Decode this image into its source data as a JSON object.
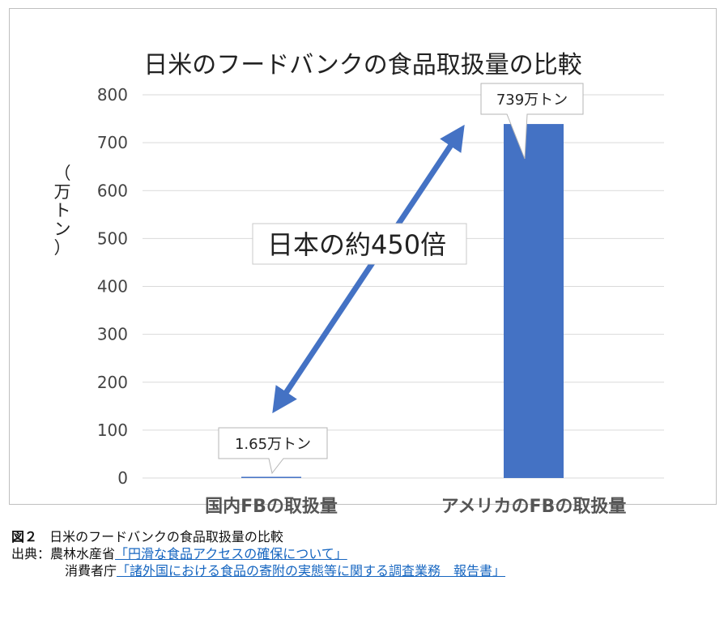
{
  "colors": {
    "bar": "#4472c4",
    "grid": "#d9d9d9",
    "arrow": "#4472c4"
  },
  "chart_data": {
    "type": "bar",
    "title": "日米のフードバンクの食品取扱量の比較",
    "ylabel": "（万トン）",
    "categories": [
      "国内FBの取扱量",
      "アメリカのFBの取扱量"
    ],
    "values": [
      1.65,
      739
    ],
    "ylim": [
      0,
      800
    ],
    "yticks": [
      0,
      100,
      200,
      300,
      400,
      500,
      600,
      700,
      800
    ],
    "grid": true,
    "data_labels": [
      "1.65万トン",
      "739万トン"
    ],
    "annotation": "日本の約450倍"
  },
  "caption": {
    "figure_label": "図２",
    "figure_title": "日米のフードバンクの食品取扱量の比較",
    "source_label": "出典：",
    "source1_org": "農林水産省",
    "source1_link": "「円滑な食品アクセスの確保について」",
    "source2_org": "消費者庁",
    "source2_link": "「諸外国における食品の寄附の実態等に関する調査業務　報告書」"
  }
}
